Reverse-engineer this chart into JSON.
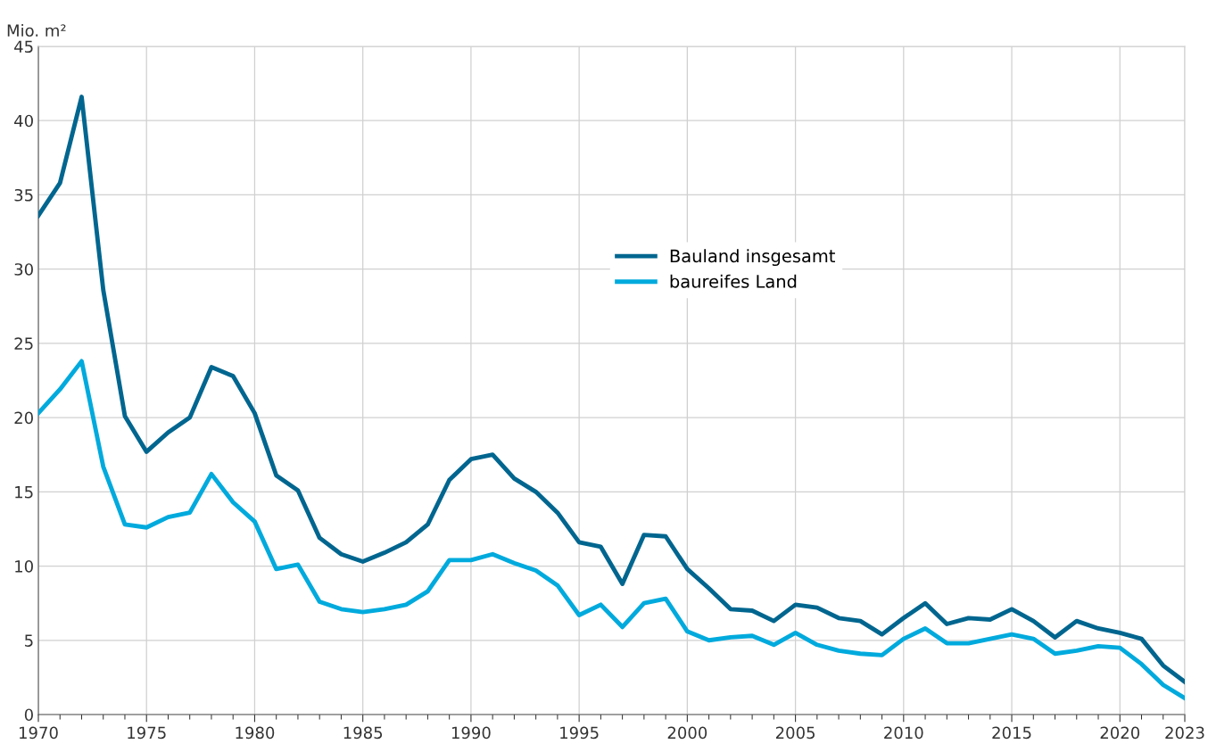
{
  "chart_data": {
    "type": "line",
    "ylabel": "Mio. m²",
    "x": [
      1970,
      1971,
      1972,
      1973,
      1974,
      1975,
      1976,
      1977,
      1978,
      1979,
      1980,
      1981,
      1982,
      1983,
      1984,
      1985,
      1986,
      1987,
      1988,
      1989,
      1990,
      1991,
      1992,
      1993,
      1994,
      1995,
      1996,
      1997,
      1998,
      1999,
      2000,
      2001,
      2002,
      2003,
      2004,
      2005,
      2006,
      2007,
      2008,
      2009,
      2010,
      2011,
      2012,
      2013,
      2014,
      2015,
      2016,
      2017,
      2018,
      2019,
      2020,
      2021,
      2022,
      2023
    ],
    "series": [
      {
        "name": "Bauland insgesamt",
        "color": "#00668f",
        "values": [
          33.6,
          35.8,
          41.6,
          28.6,
          20.1,
          17.7,
          19.0,
          20.0,
          23.4,
          22.8,
          20.3,
          16.1,
          15.1,
          11.9,
          10.8,
          10.3,
          10.9,
          11.6,
          12.8,
          15.8,
          17.2,
          17.5,
          15.9,
          15.0,
          13.6,
          11.6,
          11.3,
          8.8,
          12.1,
          12.0,
          9.8,
          8.5,
          7.1,
          7.0,
          6.3,
          7.4,
          7.2,
          6.5,
          6.3,
          5.4,
          6.5,
          7.5,
          6.1,
          6.5,
          6.4,
          7.1,
          6.3,
          5.2,
          6.3,
          5.8,
          5.5,
          5.1,
          3.3,
          2.2
        ]
      },
      {
        "name": "baureifes Land",
        "color": "#00aadd",
        "values": [
          20.3,
          21.9,
          23.8,
          16.7,
          12.8,
          12.6,
          13.3,
          13.6,
          16.2,
          14.3,
          13.0,
          9.8,
          10.1,
          7.6,
          7.1,
          6.9,
          7.1,
          7.4,
          8.3,
          10.4,
          10.4,
          10.8,
          10.2,
          9.7,
          8.7,
          6.7,
          7.4,
          5.9,
          7.5,
          7.8,
          5.6,
          5.0,
          5.2,
          5.3,
          4.7,
          5.5,
          4.7,
          4.3,
          4.1,
          4.0,
          5.1,
          5.8,
          4.8,
          4.8,
          5.1,
          5.4,
          5.1,
          4.1,
          4.3,
          4.6,
          4.5,
          3.4,
          2.0,
          1.1
        ]
      }
    ],
    "xlim": [
      1970,
      2023
    ],
    "xticks": [
      1970,
      1975,
      1980,
      1985,
      1990,
      1995,
      2000,
      2005,
      2010,
      2015,
      2020,
      2023
    ],
    "ylim": [
      0,
      45
    ],
    "yticks": [
      0,
      5,
      10,
      15,
      20,
      25,
      30,
      35,
      40,
      45
    ],
    "grid": true,
    "legend": "top",
    "marker": "none",
    "line_style": "solid"
  }
}
